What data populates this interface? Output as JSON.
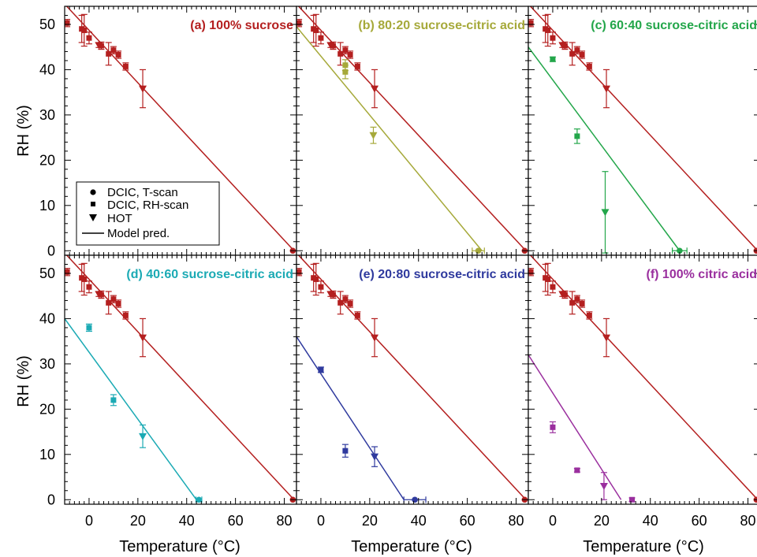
{
  "chart_data": {
    "type": "scatter",
    "layout": "2x3 panels",
    "xlabel": "Temperature (°C)",
    "ylabel": "RH (%)",
    "xlim": [
      -10,
      85
    ],
    "ylim": [
      -1,
      54
    ],
    "x_ticks": [
      0,
      20,
      40,
      60,
      80
    ],
    "x_tick_labels": [
      "0",
      "20",
      "40",
      "60",
      "80"
    ],
    "y_ticks": [
      0,
      10,
      20,
      30,
      40,
      50
    ],
    "y_tick_labels": [
      "0",
      "10",
      "20",
      "30",
      "40",
      "50"
    ],
    "legend": {
      "placement": "left-middle of panel (a)",
      "entries": [
        {
          "marker": "circle",
          "label": "DCIC, T-scan"
        },
        {
          "marker": "square",
          "label": "DCIC, RH-scan"
        },
        {
          "marker": "triangle-down",
          "label": "HOT"
        },
        {
          "marker": "line",
          "label": "Model pred."
        }
      ]
    },
    "sucrose_reference": {
      "color": "#B41F1F",
      "model_line": [
        [
          -10,
          54.5
        ],
        [
          84,
          0
        ]
      ],
      "squares": [
        {
          "x": -9,
          "y": 50.3,
          "yerr": 0.8
        },
        {
          "x": -3,
          "y": 49,
          "yerr": 3
        },
        {
          "x": -2,
          "y": 48.7,
          "yerr": 3.5
        },
        {
          "x": 0,
          "y": 47,
          "yerr": 1.3
        },
        {
          "x": 5,
          "y": 45.3,
          "yerr": 0.8
        },
        {
          "x": 8,
          "y": 43.5,
          "yerr": 2.5
        },
        {
          "x": 10,
          "y": 44.3,
          "yerr": 0.8
        },
        {
          "x": 12,
          "y": 43.3,
          "yerr": 0.8
        },
        {
          "x": 15,
          "y": 40.7,
          "yerr": 0.8
        }
      ],
      "triangles": [
        {
          "x": 4,
          "y": 45.4,
          "yerr": 0.5
        },
        {
          "x": 22,
          "y": 35.8,
          "yerr": 4.2
        }
      ],
      "circles": [
        {
          "x": 83.5,
          "y": 0
        }
      ]
    },
    "panels": [
      {
        "label": "(a) 100% sucrose",
        "color": "#B41F1F",
        "model_line": null,
        "points": []
      },
      {
        "label": "(b) 80:20 sucrose-citric acid",
        "color": "#A6A93A",
        "model_line": [
          [
            -10,
            49.5
          ],
          [
            66,
            0
          ]
        ],
        "points": [
          {
            "marker": "square",
            "x": 10,
            "y": 41,
            "yerr": 1.2
          },
          {
            "marker": "square",
            "x": 10,
            "y": 39.5,
            "yerr": 1.5
          },
          {
            "marker": "triangle-down",
            "x": 21.5,
            "y": 25.5,
            "yerr": 1.8
          },
          {
            "marker": "circle",
            "x": 64.5,
            "y": 0,
            "xerr": 2.5
          }
        ]
      },
      {
        "label": "(c) 60:40 sucrose-citric acid",
        "color": "#23A64A",
        "model_line": [
          [
            -10,
            45
          ],
          [
            52,
            0
          ]
        ],
        "points": [
          {
            "marker": "square",
            "x": 0,
            "y": 42.3,
            "yerr": 0.5
          },
          {
            "marker": "square",
            "x": 10,
            "y": 25.3,
            "yerr": 1.6
          },
          {
            "marker": "triangle-down",
            "x": 21.5,
            "y": 8.5,
            "yerr": 9
          },
          {
            "marker": "circle",
            "x": 52,
            "y": 0,
            "xerr": 3
          }
        ]
      },
      {
        "label": "(d) 40:60 sucrose-citric acid",
        "color": "#1BAAB4",
        "model_line": [
          [
            -10,
            40
          ],
          [
            44,
            0
          ]
        ],
        "points": [
          {
            "marker": "square",
            "x": 0,
            "y": 38,
            "yerr": 0.8
          },
          {
            "marker": "square",
            "x": 10,
            "y": 22,
            "yerr": 1.2
          },
          {
            "marker": "triangle-down",
            "x": 22,
            "y": 14,
            "yerr": 2.5
          },
          {
            "marker": "circle",
            "x": 45,
            "y": 0,
            "xerr": 1.2
          }
        ]
      },
      {
        "label": "(e) 20:80 sucrose-citric acid",
        "color": "#2F3A9E",
        "model_line": [
          [
            -10,
            36
          ],
          [
            34,
            0
          ]
        ],
        "points": [
          {
            "marker": "square",
            "x": 0,
            "y": 28.7,
            "yerr": 0.6
          },
          {
            "marker": "square",
            "x": 10,
            "y": 10.8,
            "yerr": 1.4
          },
          {
            "marker": "triangle-down",
            "x": 22,
            "y": 9.5,
            "yerr": 2.2
          },
          {
            "marker": "circle",
            "x": 38.5,
            "y": 0,
            "xerr": 4.5
          }
        ]
      },
      {
        "label": "(f) 100% citric acid",
        "color": "#9A2F9E",
        "model_line": [
          [
            -10,
            32
          ],
          [
            28,
            0
          ]
        ],
        "points": [
          {
            "marker": "square",
            "x": 0,
            "y": 16,
            "yerr": 1.2
          },
          {
            "marker": "square",
            "x": 10,
            "y": 6.5,
            "yerr": 0.4
          },
          {
            "marker": "triangle-down",
            "x": 21,
            "y": 3,
            "yerr": 3
          },
          {
            "marker": "square",
            "x": 32.5,
            "y": 0,
            "yerr": 0.4
          }
        ]
      }
    ]
  }
}
